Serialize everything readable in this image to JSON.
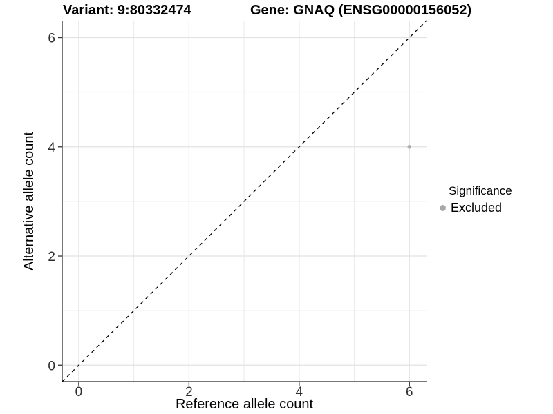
{
  "figure": {
    "title_left": "Variant: 9:80332474",
    "title_right": "Gene: GNAQ (ENSG00000156052)"
  },
  "chart_data": {
    "type": "scatter",
    "title": "Variant: 9:80332474    Gene: GNAQ (ENSG00000156052)",
    "xlabel": "Reference allele count",
    "ylabel": "Alternative allele count",
    "xlim": [
      -0.3,
      6.31
    ],
    "ylim": [
      -0.3,
      6.31
    ],
    "x_ticks": [
      0,
      2,
      4,
      6
    ],
    "y_ticks": [
      0,
      2,
      4,
      6
    ],
    "minor_gridlines_x": [
      1,
      3,
      5
    ],
    "minor_gridlines_y": [
      1,
      3,
      5
    ],
    "grid": "on",
    "legend_position": "right",
    "series": [
      {
        "name": "Excluded",
        "type": "scatter",
        "color": "#adadad",
        "points": [
          {
            "x": 6,
            "y": 4
          }
        ]
      }
    ],
    "reference_line": {
      "type": "identity",
      "label": "y = x",
      "style": "dashed",
      "color": "#000000",
      "from": [
        -0.3,
        -0.3
      ],
      "to": [
        6.31,
        6.31
      ]
    }
  },
  "legend": {
    "title": "Significance",
    "items": [
      {
        "label": "Excluded",
        "swatch_color": "#a8a8a8"
      }
    ]
  },
  "colors": {
    "background": "#ffffff",
    "grid_major": "#e2e2e2",
    "grid_minor": "#eaeaea",
    "axis_line": "#4a4a4a",
    "tick_mark": "#333333",
    "tick_label": "#2e2e2e"
  }
}
